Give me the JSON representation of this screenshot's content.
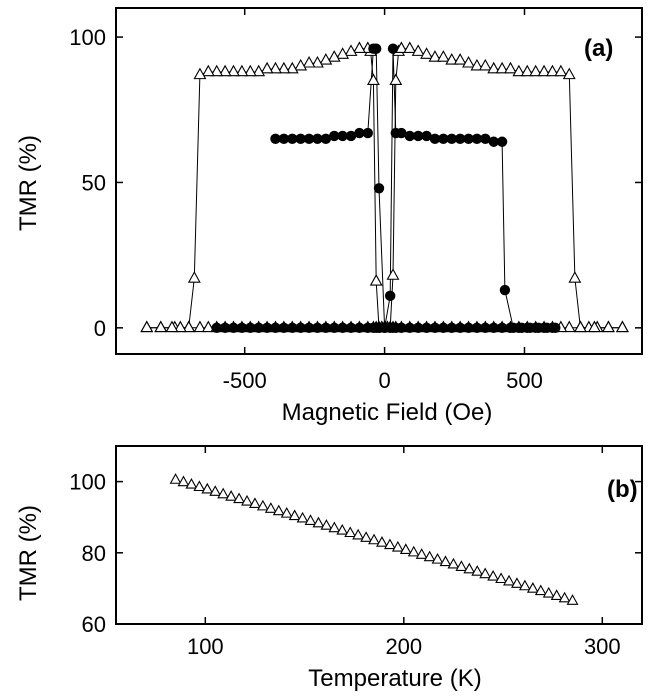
{
  "chart_data": [
    {
      "panel": "(a)",
      "type": "line",
      "xlabel": "Magnetic Field (Oe)",
      "ylabel": "TMR (%)",
      "xlim": [
        -960,
        920
      ],
      "ylim": [
        -9,
        110
      ],
      "xticks": [
        -500,
        0,
        500
      ],
      "xtick_labels": [
        "-500",
        "0",
        "500"
      ],
      "yticks": [
        0,
        50,
        100
      ],
      "ytick_labels": [
        "0",
        "50",
        "100"
      ],
      "series": [
        {
          "marker": "open-triangle",
          "sweeps": [
            {
              "x": [
                -850,
                -800,
                -750,
                -700,
                -660,
                -630,
                -600,
                -570,
                -540,
                -510,
                -480,
                -450,
                -420,
                -390,
                -360,
                -330,
                -300,
                -270,
                -240,
                -210,
                -180,
                -150,
                -120,
                -90,
                -60,
                -40,
                -30,
                -20,
                -10,
                0,
                10,
                20,
                30,
                40,
                50,
                60,
                90,
                120,
                150,
                180,
                210,
                240,
                270,
                300,
                330,
                360,
                390,
                420,
                450,
                480,
                510,
                540,
                570,
                600,
                630,
                660,
                680,
                700,
                730,
                760,
                800,
                850
              ],
              "y": [
                0,
                0,
                0,
                0,
                0,
                0,
                0,
                0,
                0,
                0,
                0,
                0,
                0,
                0,
                0,
                0,
                0,
                0,
                0,
                0,
                0,
                0,
                0,
                0,
                0,
                0,
                0,
                0,
                0,
                0,
                0,
                0,
                18,
                85,
                95,
                96,
                96,
                95,
                94,
                93,
                93,
                92,
                92,
                91,
                90,
                90,
                89,
                89,
                89,
                88,
                88,
                88,
                88,
                88,
                88,
                87,
                17,
                0,
                0,
                0,
                0,
                0
              ]
            },
            {
              "x": [
                850,
                800,
                750,
                700,
                660,
                630,
                600,
                570,
                540,
                510,
                480,
                450,
                420,
                390,
                360,
                330,
                300,
                270,
                240,
                210,
                180,
                150,
                120,
                90,
                60,
                40,
                30,
                20,
                10,
                0,
                -10,
                -20,
                -30,
                -40,
                -50,
                -60,
                -90,
                -120,
                -150,
                -180,
                -210,
                -240,
                -270,
                -300,
                -330,
                -360,
                -390,
                -420,
                -450,
                -480,
                -510,
                -540,
                -570,
                -600,
                -630,
                -660,
                -680,
                -700,
                -730,
                -760,
                -800,
                -850
              ],
              "y": [
                0,
                0,
                0,
                0,
                0,
                0,
                0,
                0,
                0,
                0,
                0,
                0,
                0,
                0,
                0,
                0,
                0,
                0,
                0,
                0,
                0,
                0,
                0,
                0,
                0,
                0,
                0,
                0,
                0,
                0,
                0,
                0,
                16,
                85,
                95,
                96,
                96,
                95,
                94,
                93,
                92,
                91,
                91,
                90,
                89,
                89,
                89,
                89,
                88,
                88,
                88,
                88,
                88,
                88,
                88,
                87,
                17,
                0,
                0,
                0,
                0,
                0
              ]
            }
          ]
        },
        {
          "marker": "filled-circle",
          "sweeps": [
            {
              "x": [
                -600,
                -570,
                -540,
                -510,
                -480,
                -450,
                -420,
                -390,
                -360,
                -330,
                -300,
                -270,
                -240,
                -210,
                -180,
                -150,
                -120,
                -90,
                -60,
                -40,
                -30,
                -20,
                0,
                20,
                30,
                40,
                60,
                90,
                120,
                150,
                180,
                210,
                240,
                270,
                300,
                330,
                360,
                390,
                420,
                430,
                460,
                490,
                520,
                550,
                580,
                610
              ],
              "y": [
                0,
                0,
                0,
                0,
                0,
                0,
                0,
                0,
                0,
                0,
                0,
                0,
                0,
                0,
                0,
                0,
                0,
                0,
                0,
                0,
                0,
                0,
                0,
                11,
                96,
                67,
                67,
                66,
                66,
                66,
                65,
                65,
                65,
                65,
                65,
                65,
                65,
                64,
                64,
                13,
                0,
                0,
                0,
                0,
                0,
                0
              ]
            },
            {
              "x": [
                600,
                570,
                540,
                510,
                480,
                450,
                420,
                390,
                360,
                330,
                300,
                270,
                240,
                210,
                180,
                150,
                120,
                90,
                60,
                40,
                30,
                20,
                0,
                -20,
                -30,
                -40,
                -60,
                -90,
                -120,
                -150,
                -180,
                -210,
                -240,
                -270,
                -300,
                -330,
                -360,
                -390
              ],
              "y": [
                0,
                0,
                0,
                0,
                0,
                0,
                0,
                0,
                0,
                0,
                0,
                0,
                0,
                0,
                0,
                0,
                0,
                0,
                0,
                0,
                0,
                0,
                0,
                48,
                96,
                96,
                67,
                67,
                66,
                66,
                66,
                65,
                65,
                65,
                65,
                65,
                65,
                65
              ]
            }
          ]
        }
      ]
    },
    {
      "panel": "(b)",
      "type": "scatter",
      "marker": "open-triangle",
      "xlabel": "Temperature (K)",
      "ylabel": "TMR (%)",
      "xlim": [
        55,
        320
      ],
      "ylim": [
        60,
        110
      ],
      "xticks": [
        100,
        200,
        300
      ],
      "xtick_labels": [
        "100",
        "200",
        "300"
      ],
      "yticks": [
        60,
        80,
        100
      ],
      "ytick_labels": [
        "60",
        "80",
        "100"
      ],
      "x_range": [
        85,
        285
      ],
      "x_step": 4,
      "y_at_start": 100.5,
      "y_at_end": 66.5
    }
  ]
}
